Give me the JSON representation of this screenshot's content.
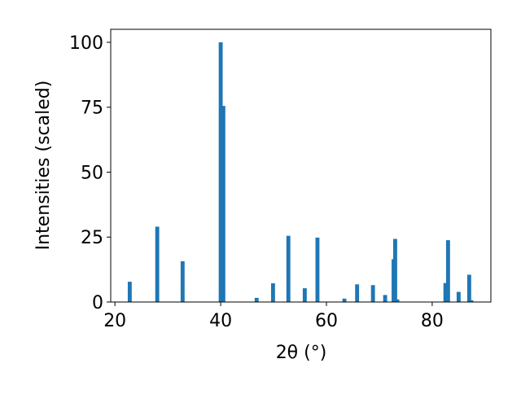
{
  "chart_data": {
    "type": "bar",
    "xlabel": "2θ (°)",
    "ylabel": "Intensities (scaled)",
    "x": [
      22.8,
      28.0,
      32.8,
      40.0,
      40.5,
      46.8,
      49.9,
      52.8,
      55.9,
      58.3,
      63.4,
      65.8,
      68.8,
      71.1,
      72.7,
      73.0,
      73.4,
      82.5,
      83.0,
      85.0,
      87.0,
      87.4
    ],
    "values": [
      7.8,
      29,
      15.7,
      100,
      75.5,
      1.6,
      7.2,
      25.5,
      5.3,
      24.8,
      1.3,
      6.8,
      6.5,
      2.7,
      16.5,
      24.3,
      1,
      7.3,
      23.8,
      3.9,
      10.5,
      0.7
    ],
    "color": "#1f77b4",
    "xlim": [
      19.2,
      91.1
    ],
    "xticks": [
      20,
      40,
      60,
      80
    ],
    "ylim": [
      0,
      105
    ],
    "yticks": [
      0,
      25,
      50,
      75,
      100
    ]
  }
}
